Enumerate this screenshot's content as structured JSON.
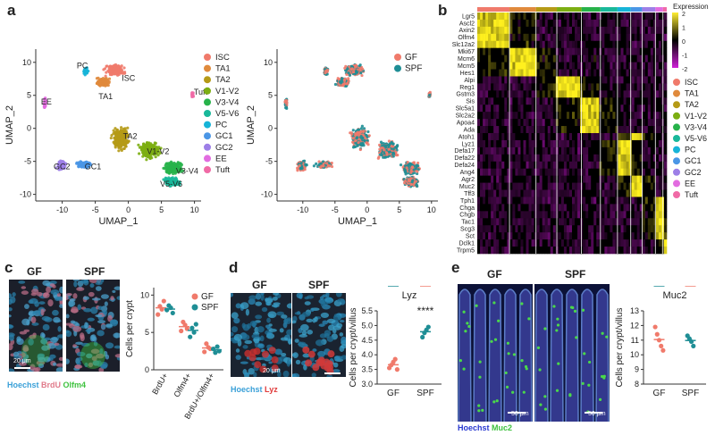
{
  "panels": {
    "a": "a",
    "b": "b",
    "c": "c",
    "d": "d",
    "e": "e"
  },
  "umap": {
    "xlabel": "UMAP_1",
    "ylabel": "UMAP_2",
    "xticks": [
      "-10",
      "-5",
      "0",
      "5",
      "10"
    ],
    "yticks": [
      "10",
      "5",
      "0",
      "-5",
      "-10"
    ],
    "cluster_labels": [
      "ISC",
      "TA1",
      "TA2",
      "V1-V2",
      "V3-V4",
      "V5-V6",
      "PC",
      "GC1",
      "GC2",
      "EE",
      "Tuft"
    ],
    "legend": [
      {
        "name": "ISC",
        "color": "#f07a6b"
      },
      {
        "name": "TA1",
        "color": "#e08a3c"
      },
      {
        "name": "TA2",
        "color": "#b59a16"
      },
      {
        "name": "V1-V2",
        "color": "#7cae12"
      },
      {
        "name": "V3-V4",
        "color": "#27b24a"
      },
      {
        "name": "V5-V6",
        "color": "#19b89a"
      },
      {
        "name": "PC",
        "color": "#16b4d8"
      },
      {
        "name": "GC1",
        "color": "#4a96e6"
      },
      {
        "name": "GC2",
        "color": "#9d7fe7"
      },
      {
        "name": "EE",
        "color": "#e26ce0"
      },
      {
        "name": "Tuft",
        "color": "#f06aa6"
      }
    ],
    "condition_legend": [
      {
        "name": "GF",
        "color": "#f07a6b"
      },
      {
        "name": "SPF",
        "color": "#1f8e95"
      }
    ]
  },
  "heatmap": {
    "genes": [
      "Lgr5",
      "Ascl2",
      "Axin2",
      "Olfm4",
      "Slc12a2",
      "Mki67",
      "Mcm6",
      "Mcm5",
      "Hes1",
      "Alpi",
      "Reg1",
      "Gstm3",
      "Sis",
      "Slc5a1",
      "Slc2a2",
      "Apoa4",
      "Ada",
      "Atoh1",
      "Lyz1",
      "Defa17",
      "Defa22",
      "Defa24",
      "Ang4",
      "Agr2",
      "Muc2",
      "Tff3",
      "Tph1",
      "Chga",
      "Chgb",
      "Tac1",
      "Scg3",
      "Sct",
      "Dclk1",
      "Trpm5"
    ],
    "colorbar_title": "Expression",
    "colorbar_ticks": [
      "2",
      "1",
      "0",
      "-1",
      "-2"
    ]
  },
  "panel_c": {
    "micro_labels": [
      "GF",
      "SPF"
    ],
    "scalebar": "20 μm",
    "stain_legend": [
      {
        "text": "Hoechst",
        "color": "#3aa0d8"
      },
      {
        "text": "BrdU",
        "color": "#e07a8a"
      },
      {
        "text": "Olfm4",
        "color": "#3fc23f"
      }
    ],
    "ylabel": "Cells per crypt",
    "yticks": [
      "10",
      "5",
      "0"
    ],
    "categories": [
      "BrdU+",
      "Olfm4+",
      "BrdU+/Olfm4+"
    ],
    "legend": [
      {
        "name": "GF",
        "color": "#f07a6b"
      },
      {
        "name": "SPF",
        "color": "#1f8e95"
      }
    ]
  },
  "panel_d": {
    "micro_labels": [
      "GF",
      "SPF"
    ],
    "scalebar": "20 μm",
    "stain_legend": [
      {
        "text": "Hoechst",
        "color": "#3aa0d8"
      },
      {
        "text": "Lyz",
        "color": "#e03a3a"
      }
    ],
    "title": "Lyz",
    "ylabel": "Cells per crypt/villus",
    "yticks": [
      "5.5",
      "5.0",
      "4.5",
      "4.0",
      "3.5",
      "3.0"
    ],
    "categories": [
      "GF",
      "SPF"
    ],
    "significance": "****"
  },
  "panel_e": {
    "micro_labels": [
      "GF",
      "SPF"
    ],
    "scalebar": "50 μm",
    "stain_legend": [
      {
        "text": "Hoechst",
        "color": "#2a3ad0"
      },
      {
        "text": "Muc2",
        "color": "#3fc23f"
      }
    ],
    "title": "Muc2",
    "ylabel": "Cells per crypt/villus",
    "yticks": [
      "13",
      "12",
      "11",
      "10",
      "9",
      "8"
    ],
    "categories": [
      "GF",
      "SPF"
    ]
  },
  "chart_data": [
    {
      "type": "scatter",
      "panel": "c",
      "categories": [
        "BrdU+",
        "Olfm4+",
        "BrdU+/Olfm4+"
      ],
      "ylabel": "Cells per crypt",
      "ylim": [
        0,
        11
      ],
      "series": [
        {
          "name": "GF",
          "values": [
            [
              7.4,
              8.5,
              8.1,
              9.2
            ],
            [
              5.2,
              6.4,
              6.0,
              5.5
            ],
            [
              2.4,
              3.5,
              3.0,
              2.8
            ]
          ]
        },
        {
          "name": "SPF",
          "values": [
            [
              8.0,
              8.6,
              8.3,
              7.6
            ],
            [
              4.4,
              5.6,
              5.0,
              6.1
            ],
            [
              2.8,
              2.3,
              3.1,
              2.5
            ]
          ]
        }
      ]
    },
    {
      "type": "scatter",
      "panel": "d",
      "title": "Lyz",
      "categories": [
        "GF",
        "SPF"
      ],
      "ylabel": "Cells per crypt/villus",
      "ylim": [
        3.0,
        5.5
      ],
      "series": [
        {
          "name": "GF",
          "values": [
            3.55,
            3.65,
            3.75,
            3.85,
            3.5
          ]
        },
        {
          "name": "SPF",
          "values": [
            4.6,
            4.75,
            4.85,
            4.95
          ]
        }
      ]
    },
    {
      "type": "scatter",
      "panel": "e",
      "title": "Muc2",
      "categories": [
        "GF",
        "SPF"
      ],
      "ylabel": "Cells per crypt/villus",
      "ylim": [
        8,
        13
      ],
      "series": [
        {
          "name": "GF",
          "values": [
            11.9,
            11.4,
            11.0,
            10.6,
            10.3
          ]
        },
        {
          "name": "SPF",
          "values": [
            11.3,
            11.1,
            10.9,
            10.6
          ]
        }
      ]
    }
  ]
}
